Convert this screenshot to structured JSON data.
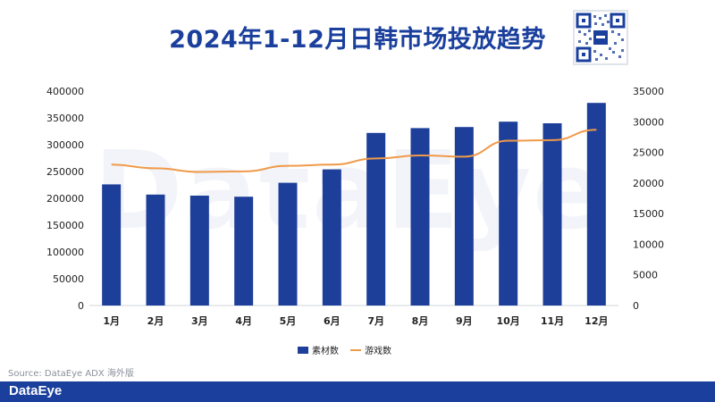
{
  "title": "2024年1-12月日韩市场投放趋势",
  "source": "Source: DataEye ADX 海外版",
  "brand": "DataEye",
  "colors": {
    "bar": "#1d3f9a",
    "line": "#ef9a4a",
    "title": "#1a3f9c",
    "footer": "#1a3f9c"
  },
  "chart_data": {
    "type": "bar",
    "title": "2024年1-12月日韩市场投放趋势",
    "categories": [
      "1月",
      "2月",
      "3月",
      "4月",
      "5月",
      "6月",
      "7月",
      "8月",
      "9月",
      "10月",
      "11月",
      "12月"
    ],
    "series": [
      {
        "name": "素材数",
        "type": "bar",
        "axis": "left",
        "values": [
          226000,
          207000,
          205000,
          203000,
          229000,
          254000,
          322000,
          331000,
          333000,
          343000,
          340000,
          378000
        ]
      },
      {
        "name": "游戏数",
        "type": "line",
        "axis": "right",
        "values": [
          23000,
          22400,
          21800,
          21900,
          22800,
          23000,
          24000,
          24500,
          24300,
          26900,
          27000,
          28700
        ]
      }
    ],
    "ylim_left": [
      0,
      400000
    ],
    "yticks_left": [
      "0",
      "50000",
      "100000",
      "150000",
      "200000",
      "250000",
      "300000",
      "350000",
      "400000"
    ],
    "ylim_right": [
      0,
      35000
    ],
    "yticks_right": [
      "0",
      "5000",
      "10000",
      "15000",
      "20000",
      "25000",
      "30000",
      "35000"
    ],
    "grid": false,
    "legend": "bottom-center"
  }
}
